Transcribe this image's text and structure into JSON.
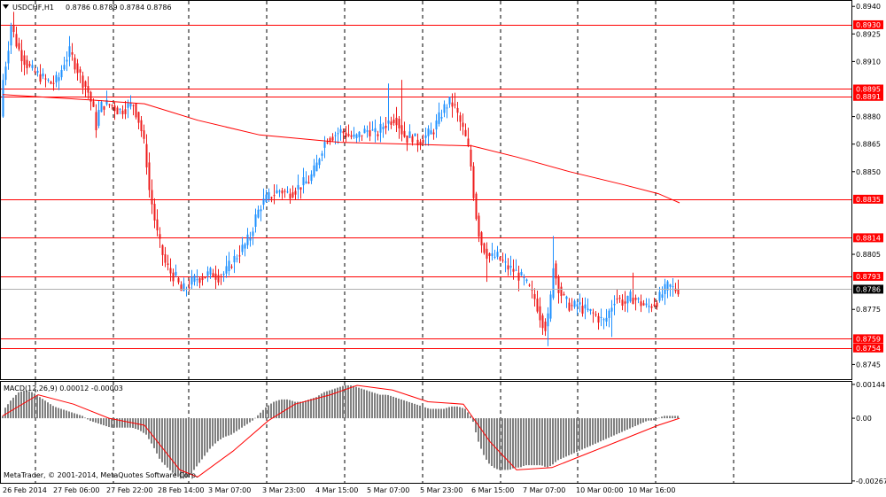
{
  "header": {
    "symbol": "USDCHF,H1",
    "ohlc": "0.8786 0.8789 0.8784 0.8786"
  },
  "indicator": {
    "label": "MACD(12,26,9) 0.00012 -0.00003"
  },
  "watermark": "MetaTrader, © 2001-2014, MetaQuotes Software Corp.",
  "colors": {
    "bull_candle": "#1e90ff",
    "bear_candle": "#ee1c1c",
    "level_line": "#ff0000",
    "ma_line": "#ff0000",
    "macd_hist": "#808080",
    "macd_signal": "#ff0000",
    "current_price": "#000000"
  },
  "chart_data": [
    {
      "type": "candlestick",
      "title": "USDCHF,H1",
      "ylim": [
        0.8737,
        0.8943
      ],
      "y_tick_labels": [
        "0.8940",
        "0.8925",
        "0.8910",
        "0.8880",
        "0.8865",
        "0.8850",
        "0.8805",
        "0.8775",
        "0.8745"
      ],
      "x_tick_labels": [
        "26 Feb 2014",
        "27 Feb 06:00",
        "27 Feb 22:00",
        "28 Feb 14:00",
        "3 Mar 07:00",
        "3 Mar 23:00",
        "4 Mar 15:00",
        "5 Mar 07:00",
        "5 Mar 23:00",
        "6 Mar 15:00",
        "7 Mar 07:00",
        "10 Mar 00:00",
        "10 Mar 16:00"
      ],
      "level_lines": [
        {
          "value": 0.893,
          "label": "0.8930"
        },
        {
          "value": 0.8895,
          "label": "0.8895"
        },
        {
          "value": 0.8891,
          "label": "0.8891"
        },
        {
          "value": 0.8835,
          "label": "0.8835"
        },
        {
          "value": 0.8814,
          "label": "0.8814"
        },
        {
          "value": 0.8793,
          "label": "0.8793"
        },
        {
          "value": 0.8759,
          "label": "0.8759"
        },
        {
          "value": 0.8754,
          "label": "0.8754"
        }
      ],
      "current_price": {
        "value": 0.8786,
        "label": "0.8786"
      },
      "close_path": [
        [
          0,
          0.888
        ],
        [
          3,
          0.89
        ],
        [
          8,
          0.8915
        ],
        [
          12,
          0.893
        ],
        [
          18,
          0.892
        ],
        [
          22,
          0.8915
        ],
        [
          28,
          0.891
        ],
        [
          35,
          0.8905
        ],
        [
          42,
          0.8903
        ],
        [
          50,
          0.89
        ],
        [
          58,
          0.8898
        ],
        [
          65,
          0.89
        ],
        [
          72,
          0.891
        ],
        [
          78,
          0.8915
        ],
        [
          85,
          0.8908
        ],
        [
          92,
          0.89
        ],
        [
          98,
          0.8895
        ],
        [
          104,
          0.8885
        ],
        [
          108,
          0.8875
        ],
        [
          112,
          0.8885
        ],
        [
          118,
          0.8887
        ],
        [
          126,
          0.8886
        ],
        [
          134,
          0.8883
        ],
        [
          142,
          0.8885
        ],
        [
          150,
          0.8887
        ],
        [
          158,
          0.8875
        ],
        [
          164,
          0.886
        ],
        [
          168,
          0.884
        ],
        [
          172,
          0.883
        ],
        [
          176,
          0.8818
        ],
        [
          180,
          0.881
        ],
        [
          186,
          0.88
        ],
        [
          192,
          0.8795
        ],
        [
          198,
          0.8792
        ],
        [
          204,
          0.8785
        ],
        [
          210,
          0.8787
        ],
        [
          216,
          0.879
        ],
        [
          222,
          0.8792
        ],
        [
          230,
          0.8793
        ],
        [
          238,
          0.8795
        ],
        [
          246,
          0.8793
        ],
        [
          254,
          0.8795
        ],
        [
          260,
          0.88
        ],
        [
          268,
          0.8805
        ],
        [
          276,
          0.881
        ],
        [
          282,
          0.8815
        ],
        [
          288,
          0.8825
        ],
        [
          294,
          0.8832
        ],
        [
          300,
          0.8835
        ],
        [
          308,
          0.8838
        ],
        [
          316,
          0.884
        ],
        [
          324,
          0.8838
        ],
        [
          332,
          0.884
        ],
        [
          340,
          0.8843
        ],
        [
          348,
          0.8845
        ],
        [
          356,
          0.8852
        ],
        [
          362,
          0.8862
        ],
        [
          368,
          0.8868
        ],
        [
          376,
          0.887
        ],
        [
          384,
          0.8872
        ],
        [
          392,
          0.887
        ],
        [
          400,
          0.8868
        ],
        [
          408,
          0.8871
        ],
        [
          416,
          0.8873
        ],
        [
          424,
          0.887
        ],
        [
          432,
          0.8875
        ],
        [
          440,
          0.8878
        ],
        [
          446,
          0.888
        ],
        [
          452,
          0.8873
        ],
        [
          458,
          0.8868
        ],
        [
          464,
          0.887
        ],
        [
          470,
          0.8866
        ],
        [
          476,
          0.8868
        ],
        [
          482,
          0.887
        ],
        [
          488,
          0.8872
        ],
        [
          494,
          0.8878
        ],
        [
          500,
          0.8884
        ],
        [
          506,
          0.8888
        ],
        [
          512,
          0.8886
        ],
        [
          518,
          0.8878
        ],
        [
          524,
          0.887
        ],
        [
          530,
          0.8858
        ],
        [
          534,
          0.8838
        ],
        [
          538,
          0.8822
        ],
        [
          542,
          0.8812
        ],
        [
          548,
          0.8806
        ],
        [
          554,
          0.8803
        ],
        [
          560,
          0.8804
        ],
        [
          566,
          0.8801
        ],
        [
          572,
          0.8798
        ],
        [
          580,
          0.8796
        ],
        [
          586,
          0.8793
        ],
        [
          592,
          0.879
        ],
        [
          598,
          0.8785
        ],
        [
          604,
          0.878
        ],
        [
          610,
          0.877
        ],
        [
          616,
          0.8765
        ],
        [
          620,
          0.8775
        ],
        [
          624,
          0.88
        ],
        [
          628,
          0.879
        ],
        [
          634,
          0.8782
        ],
        [
          640,
          0.8778
        ],
        [
          646,
          0.8776
        ],
        [
          652,
          0.8778
        ],
        [
          658,
          0.8775
        ],
        [
          664,
          0.8774
        ],
        [
          670,
          0.8772
        ],
        [
          676,
          0.877
        ],
        [
          682,
          0.8768
        ],
        [
          688,
          0.8775
        ],
        [
          694,
          0.8782
        ],
        [
          700,
          0.878
        ],
        [
          706,
          0.8778
        ],
        [
          712,
          0.8782
        ],
        [
          718,
          0.878
        ],
        [
          724,
          0.8778
        ],
        [
          730,
          0.8776
        ],
        [
          736,
          0.8778
        ],
        [
          742,
          0.878
        ],
        [
          748,
          0.8784
        ],
        [
          754,
          0.8788
        ],
        [
          760,
          0.8786
        ],
        [
          764,
          0.8786
        ]
      ],
      "spikes": [
        [
          12,
          0.8937
        ],
        [
          78,
          0.892
        ],
        [
          434,
          0.8898
        ],
        [
          450,
          0.89
        ],
        [
          510,
          0.8893
        ],
        [
          546,
          0.879
        ],
        [
          616,
          0.8755
        ],
        [
          622,
          0.8815
        ],
        [
          686,
          0.876
        ],
        [
          712,
          0.8795
        ],
        [
          756,
          0.8792
        ]
      ],
      "moving_average": [
        [
          0,
          0.8892
        ],
        [
          100,
          0.8889
        ],
        [
          160,
          0.8887
        ],
        [
          220,
          0.8878
        ],
        [
          290,
          0.887
        ],
        [
          380,
          0.8866
        ],
        [
          460,
          0.8865
        ],
        [
          530,
          0.8864
        ],
        [
          580,
          0.8858
        ],
        [
          640,
          0.885
        ],
        [
          700,
          0.8843
        ],
        [
          740,
          0.8838
        ],
        [
          764,
          0.8833
        ]
      ]
    },
    {
      "type": "bar",
      "title": "MACD(12,26,9) 0.00012 -0.00003",
      "ylim": [
        -0.00275,
        0.00155
      ],
      "y_tick_labels": [
        "0.00144",
        "0.00",
        "-0.00267"
      ],
      "histogram": [
        [
          2,
          0.0004
        ],
        [
          10,
          0.0008
        ],
        [
          18,
          0.0011
        ],
        [
          26,
          0.0012
        ],
        [
          34,
          0.0011
        ],
        [
          42,
          0.0009
        ],
        [
          50,
          0.0007
        ],
        [
          58,
          0.0005
        ],
        [
          66,
          0.0004
        ],
        [
          74,
          0.0003
        ],
        [
          82,
          0.0002
        ],
        [
          90,
          0.0001
        ],
        [
          98,
          -0.0001
        ],
        [
          106,
          -0.0002
        ],
        [
          114,
          -0.0003
        ],
        [
          122,
          -0.0004
        ],
        [
          130,
          -0.0004
        ],
        [
          138,
          -0.0004
        ],
        [
          146,
          -0.0004
        ],
        [
          154,
          -0.0005
        ],
        [
          162,
          -0.0007
        ],
        [
          170,
          -0.0012
        ],
        [
          178,
          -0.0018
        ],
        [
          186,
          -0.0021
        ],
        [
          194,
          -0.0024
        ],
        [
          202,
          -0.0026
        ],
        [
          210,
          -0.0025
        ],
        [
          218,
          -0.0021
        ],
        [
          226,
          -0.0017
        ],
        [
          234,
          -0.0013
        ],
        [
          242,
          -0.001
        ],
        [
          250,
          -0.0008
        ],
        [
          258,
          -0.0007
        ],
        [
          266,
          -0.0005
        ],
        [
          274,
          -0.0003
        ],
        [
          282,
          -0.0001
        ],
        [
          290,
          0.0002
        ],
        [
          298,
          0.0005
        ],
        [
          306,
          0.0007
        ],
        [
          314,
          0.0008
        ],
        [
          322,
          0.0008
        ],
        [
          330,
          0.0007
        ],
        [
          338,
          0.0007
        ],
        [
          346,
          0.0008
        ],
        [
          354,
          0.0009
        ],
        [
          362,
          0.0011
        ],
        [
          370,
          0.0012
        ],
        [
          378,
          0.0013
        ],
        [
          386,
          0.0014
        ],
        [
          394,
          0.0014
        ],
        [
          402,
          0.0013
        ],
        [
          410,
          0.0012
        ],
        [
          418,
          0.0011
        ],
        [
          426,
          0.001
        ],
        [
          434,
          0.001
        ],
        [
          442,
          0.0009
        ],
        [
          450,
          0.0008
        ],
        [
          458,
          0.0007
        ],
        [
          466,
          0.0006
        ],
        [
          474,
          0.0005
        ],
        [
          482,
          0.0004
        ],
        [
          490,
          0.0004
        ],
        [
          498,
          0.0004
        ],
        [
          506,
          0.0005
        ],
        [
          514,
          0.0005
        ],
        [
          522,
          0.0004
        ],
        [
          530,
          0.0
        ],
        [
          536,
          -0.0009
        ],
        [
          542,
          -0.0015
        ],
        [
          548,
          -0.0019
        ],
        [
          554,
          -0.0021
        ],
        [
          560,
          -0.0022
        ],
        [
          566,
          -0.0022
        ],
        [
          572,
          -0.0022
        ],
        [
          578,
          -0.0021
        ],
        [
          584,
          -0.0021
        ],
        [
          590,
          -0.002
        ],
        [
          596,
          -0.002
        ],
        [
          602,
          -0.002
        ],
        [
          608,
          -0.002
        ],
        [
          614,
          -0.0021
        ],
        [
          620,
          -0.002
        ],
        [
          626,
          -0.0018
        ],
        [
          632,
          -0.0017
        ],
        [
          638,
          -0.0016
        ],
        [
          644,
          -0.0015
        ],
        [
          650,
          -0.0014
        ],
        [
          656,
          -0.0013
        ],
        [
          662,
          -0.0012
        ],
        [
          668,
          -0.0011
        ],
        [
          674,
          -0.001
        ],
        [
          680,
          -0.0009
        ],
        [
          686,
          -0.0008
        ],
        [
          692,
          -0.0007
        ],
        [
          698,
          -0.0006
        ],
        [
          704,
          -0.0005
        ],
        [
          710,
          -0.0004
        ],
        [
          716,
          -0.0003
        ],
        [
          722,
          -0.0002
        ],
        [
          728,
          -0.0001
        ],
        [
          734,
          -0.0001
        ],
        [
          740,
          0.0
        ],
        [
          746,
          0.0001
        ],
        [
          752,
          0.0001
        ],
        [
          758,
          0.0001
        ],
        [
          764,
          0.0001
        ]
      ],
      "signal": [
        [
          0,
          0.0001
        ],
        [
          40,
          0.001
        ],
        [
          80,
          0.0006
        ],
        [
          120,
          0.0
        ],
        [
          160,
          -0.0003
        ],
        [
          200,
          -0.0022
        ],
        [
          220,
          -0.0025
        ],
        [
          260,
          -0.0014
        ],
        [
          300,
          -0.0001
        ],
        [
          330,
          0.0006
        ],
        [
          370,
          0.001
        ],
        [
          400,
          0.0014
        ],
        [
          440,
          0.0012
        ],
        [
          480,
          0.0007
        ],
        [
          520,
          0.0006
        ],
        [
          550,
          -0.001
        ],
        [
          580,
          -0.0022
        ],
        [
          620,
          -0.0021
        ],
        [
          660,
          -0.0015
        ],
        [
          700,
          -0.0009
        ],
        [
          740,
          -0.0003
        ],
        [
          764,
          0.0
        ]
      ]
    }
  ]
}
